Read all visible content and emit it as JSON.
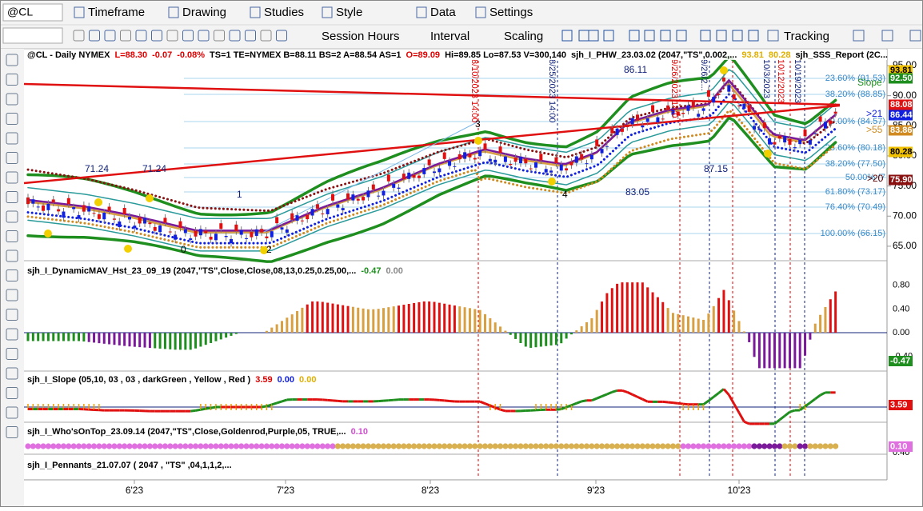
{
  "toolbar": {
    "symbol": "@CL",
    "menus": [
      "Timeframe",
      "Drawing",
      "Studies",
      "Style",
      "Data",
      "Settings"
    ],
    "tools": [
      "Session Hours",
      "Interval",
      "Scaling",
      "Tracking"
    ]
  },
  "main_panel": {
    "header": [
      {
        "text": "@CL - Daily  NYMEX",
        "color": "#000"
      },
      {
        "text": "L=88.30",
        "color": "#e00000"
      },
      {
        "text": "-0.07",
        "color": "#e00000"
      },
      {
        "text": "-0.08%",
        "color": "#e00000"
      },
      {
        "text": "TS=1 TE=NYMEX B=88.11 BS=2 A=88.54 AS=1",
        "color": "#000"
      },
      {
        "text": "O=89.09",
        "color": "#e00000"
      },
      {
        "text": "Hi=89.85 Lo=87.53 V=300,140",
        "color": "#000"
      },
      {
        "text": "sjh_I_PHW_23.03.02 (2047,\"TS\",0.002,...",
        "color": "#000"
      },
      {
        "text": "93.81",
        "color": "#e0b000"
      },
      {
        "text": "80.28",
        "color": "#e0b000"
      },
      {
        "text": "sjh_SSS_Report (2C...",
        "color": "#000"
      }
    ],
    "price_axis": [
      "95.00",
      "90.00",
      "85.00",
      "80.00",
      "75.00",
      "70.00",
      "65.00"
    ],
    "badges": [
      {
        "text": "93.81",
        "color": "#f2c200"
      },
      {
        "text": "92.50",
        "color": "#1e8f1e"
      },
      {
        "text": "88.08",
        "color": "#e01010"
      },
      {
        "text": "86.44",
        "color": "#1020e0"
      },
      {
        "text": "83.86",
        "color": "#d08a20"
      },
      {
        "text": "80.28",
        "color": "#f2c200"
      },
      {
        "text": "75.90",
        "color": "#8b1010"
      }
    ],
    "fib_levels": [
      "23.60% (91.53)",
      "38.20% (88.85)",
      "0.00% (84.57)",
      "23.60% (80.18)",
      "38.20% (77.50)",
      "50.00% (7",
      "61.80% (73.17)",
      "76.40% (70.49)",
      "100.00% (66.15)"
    ],
    "annotations": [
      {
        "text": "Slope",
        "color": "#1e8f1e"
      },
      {
        "text": ">21",
        "color": "#1020e0"
      },
      {
        "text": ">55",
        "color": "#d08a20"
      },
      {
        "text": ">20",
        "color": "#5a0000"
      },
      {
        "text": "86.11",
        "color": "#10207a"
      },
      {
        "text": "87.15",
        "color": "#10207a"
      },
      {
        "text": "83.05",
        "color": "#10207a"
      },
      {
        "text": "71.24",
        "color": "#10207a"
      },
      {
        "text": "71.24",
        "color": "#10207a"
      },
      {
        "text": "1",
        "color": "#10207a"
      },
      {
        "text": "0",
        "color": "#000"
      },
      {
        "text": "2",
        "color": "#000"
      },
      {
        "text": "3",
        "color": "#000"
      },
      {
        "text": "4",
        "color": "#000"
      }
    ],
    "vertical_labels": [
      {
        "text": "8/10/2023 14:00",
        "color": "#e00000"
      },
      {
        "text": "8/25/2023 14:00",
        "color": "#10207a"
      },
      {
        "text": "9/26/2023 14:0",
        "color": "#e00000"
      },
      {
        "text": "9/26/2...",
        "color": "#10207a"
      },
      {
        "text": "10/3/2023",
        "color": "#10207a"
      },
      {
        "text": "10/12/2023",
        "color": "#e00000"
      },
      {
        "text": "10/19/2023",
        "color": "#10207a"
      }
    ]
  },
  "indicators": [
    {
      "header": [
        {
          "text": "sjh_I_DynamicMAV_Hst_23_09_19 (2047,\"TS\",Close,Close,08,13,0.25,0.25,00,...",
          "color": "#000"
        },
        {
          "text": "-0.47",
          "color": "#1e8f1e"
        },
        {
          "text": "0.00",
          "color": "#888"
        }
      ],
      "axis": [
        "0.80",
        "0.40",
        "0.00",
        "-0.40"
      ],
      "badges": [
        {
          "text": "-0.47",
          "color": "#1e8f1e"
        }
      ]
    },
    {
      "header": [
        {
          "text": "sjh_I_Slope (05,10, 03 , 03 , darkGreen , Yellow , Red )",
          "color": "#000"
        },
        {
          "text": "3.59",
          "color": "#e00000"
        },
        {
          "text": "0.00",
          "color": "#1020e0"
        },
        {
          "text": "0.00",
          "color": "#e0b000"
        }
      ],
      "axis": [],
      "badges": [
        {
          "text": "3.59",
          "color": "#e01010"
        }
      ]
    },
    {
      "header": [
        {
          "text": "sjh_I_Who'sOnTop_23.09.14 (2047,\"TS\",Close,Goldenrod,Purple,05,  TRUE,...",
          "color": "#000"
        },
        {
          "text": "0.10",
          "color": "#d050d0"
        }
      ],
      "axis": [
        "0.40"
      ],
      "badges": [
        {
          "text": "0.10",
          "color": "#e070e0"
        }
      ]
    },
    {
      "header": [
        {
          "text": "sjh_I_Pennants_21.07.07 (  2047 , \"TS\" ,04,1,1,2,...",
          "color": "#000"
        }
      ],
      "axis": [],
      "badges": []
    }
  ],
  "date_axis": [
    "6'23",
    "7'23",
    "8'23",
    "9'23",
    "10'23"
  ]
}
